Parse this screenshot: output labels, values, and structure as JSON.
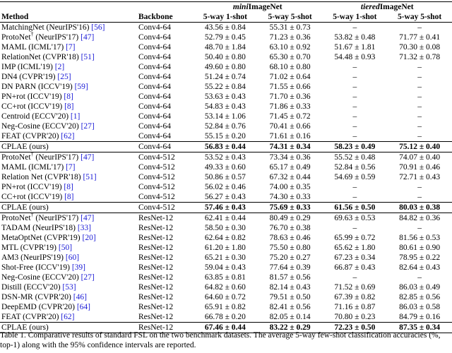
{
  "headers": {
    "method": "Method",
    "backbone": "Backbone",
    "group_mini_prefix": "mini",
    "group_mini_suffix": "ImageNet",
    "group_tiered_prefix": "tiered",
    "group_tiered_suffix": "ImageNet",
    "one_shot": "5-way 1-shot",
    "five_shot": "5-way 5-shot"
  },
  "groups": [
    {
      "rows": [
        {
          "name": "MatchingNet (NeurIPS'16) ",
          "cite": "[56]",
          "dagger": false,
          "backbone": "Conv4-64",
          "m1": "43.56 ± 0.84",
          "m5": "55.31 ± 0.73",
          "t1": "–",
          "t5": "–"
        },
        {
          "name": "ProtoNet",
          "tail": " (NeurIPS'17) ",
          "cite": "[47]",
          "dagger": true,
          "backbone": "Conv4-64",
          "m1": "52.79 ± 0.45",
          "m5": "71.23 ± 0.36",
          "t1": "53.82 ± 0.48",
          "t5": "71.77 ± 0.41"
        },
        {
          "name": "MAML (ICML'17) ",
          "cite": "[7]",
          "dagger": false,
          "backbone": "Conv4-64",
          "m1": "48.70 ± 1.84",
          "m5": "63.10 ± 0.92",
          "t1": "51.67 ± 1.81",
          "t5": "70.30 ± 0.08"
        },
        {
          "name": "RelationNet (CVPR'18) ",
          "cite": "[51]",
          "dagger": false,
          "backbone": "Conv4-64",
          "m1": "50.40 ± 0.80",
          "m5": "65.30 ± 0.70",
          "t1": "54.48 ± 0.93",
          "t5": "71.32 ± 0.78"
        },
        {
          "name": "IMP (ICML'19) ",
          "cite": "[2]",
          "dagger": false,
          "backbone": "Conv4-64",
          "m1": "49.60 ± 0.80",
          "m5": "68.10 ± 0.80",
          "t1": "–",
          "t5": "–"
        },
        {
          "name": "DN4 (CVPR'19) ",
          "cite": "[25]",
          "dagger": false,
          "backbone": "Conv4-64",
          "m1": "51.24 ± 0.74",
          "m5": "71.02 ± 0.64",
          "t1": "–",
          "t5": "–"
        },
        {
          "name": "DN PARN (ICCV'19) ",
          "cite": "[59]",
          "dagger": false,
          "backbone": "Conv4-64",
          "m1": "55.22 ± 0.84",
          "m5": "71.55 ± 0.66",
          "t1": "–",
          "t5": "–"
        },
        {
          "name": "PN+rot (ICCV'19) ",
          "cite": "[8]",
          "dagger": false,
          "backbone": "Conv4-64",
          "m1": "53.63 ± 0.43",
          "m5": "71.70 ± 0.36",
          "t1": "–",
          "t5": "–"
        },
        {
          "name": "CC+rot (ICCV'19) ",
          "cite": "[8]",
          "dagger": false,
          "backbone": "Conv4-64",
          "m1": "54.83 ± 0.43",
          "m5": "71.86 ± 0.33",
          "t1": "–",
          "t5": "–"
        },
        {
          "name": "Centroid (ECCV'20) ",
          "cite": "[1]",
          "dagger": false,
          "backbone": "Conv4-64",
          "m1": "53.14 ± 1.06",
          "m5": "71.45 ± 0.72",
          "t1": "–",
          "t5": "–"
        },
        {
          "name": "Neg-Cosine (ECCV'20) ",
          "cite": "[27]",
          "dagger": false,
          "backbone": "Conv4-64",
          "m1": "52.84 ± 0.76",
          "m5": "70.41 ± 0.66",
          "t1": "–",
          "t5": "–"
        },
        {
          "name": "FEAT (CVPR'20) ",
          "cite": "[62]",
          "dagger": false,
          "backbone": "Conv4-64",
          "m1": "55.15 ± 0.20",
          "m5": "71.61 ± 0.16",
          "t1": "–",
          "t5": "–"
        }
      ],
      "ours": {
        "name": "CPLAE (ours)",
        "backbone": "Conv4-64",
        "m1": "56.83 ± 0.44",
        "m5": "74.31 ± 0.34",
        "t1": "58.23 ± 0.49",
        "t5": "75.12 ± 0.40"
      }
    },
    {
      "rows": [
        {
          "name": "ProtoNet",
          "tail": " (NeurIPS'17) ",
          "cite": "[47]",
          "dagger": true,
          "backbone": "Conv4-512",
          "m1": "53.52 ± 0.43",
          "m5": "73.34 ± 0.36",
          "t1": "55.52 ± 0.48",
          "t5": "74.07 ± 0.40"
        },
        {
          "name": "MAML (ICML'17) ",
          "cite": "[7]",
          "dagger": false,
          "backbone": "Conv4-512",
          "m1": "49.33 ± 0.60",
          "m5": "65.17 ± 0.49",
          "t1": "52.84 ± 0.56",
          "t5": "70.91 ± 0.46"
        },
        {
          "name": "Relation Net (CVPR'18) ",
          "cite": "[51]",
          "dagger": false,
          "backbone": "Conv4-512",
          "m1": "50.86 ± 0.57",
          "m5": "67.32 ± 0.44",
          "t1": "54.69 ± 0.59",
          "t5": "72.71 ± 0.43"
        },
        {
          "name": "PN+rot (ICCV'19) ",
          "cite": "[8]",
          "dagger": false,
          "backbone": "Conv4-512",
          "m1": "56.02 ± 0.46",
          "m5": "74.00 ± 0.35",
          "t1": "–",
          "t5": "–"
        },
        {
          "name": "CC+rot (ICCV'19) ",
          "cite": "[8]",
          "dagger": false,
          "backbone": "Conv4-512",
          "m1": "56.27 ± 0.43",
          "m5": "74.30 ± 0.33",
          "t1": "–",
          "t5": "–"
        }
      ],
      "ours": {
        "name": "CPLAE (ours)",
        "backbone": "Conv4-512",
        "m1": "57.46 ± 0.43",
        "m5": "75.69 ± 0.33",
        "t1": "61.56 ± 0.50",
        "t5": "80.03 ± 0.38"
      }
    },
    {
      "rows": [
        {
          "name": "ProtoNet",
          "tail": " (NeurIPS'17) ",
          "cite": "[47]",
          "dagger": true,
          "backbone": "ResNet-12",
          "m1": "62.41 ± 0.44",
          "m5": "80.49 ± 0.29",
          "t1": "69.63 ± 0.53",
          "t5": "84.82 ± 0.36"
        },
        {
          "name": "TADAM (NeurIPS'18) ",
          "cite": "[33]",
          "dagger": false,
          "backbone": "ResNet-12",
          "m1": "58.50 ± 0.30",
          "m5": "76.70 ± 0.38",
          "t1": "–",
          "t5": "–"
        },
        {
          "name": "MetaOptNet (CVPR'19) ",
          "cite": "[20]",
          "dagger": false,
          "backbone": "ResNet-12",
          "m1": "62.64 ± 0.82",
          "m5": "78.63 ± 0.46",
          "t1": "65.99 ± 0.72",
          "t5": "81.56 ± 0.53"
        },
        {
          "name": "MTL (CVPR'19) ",
          "cite": "[50]",
          "dagger": false,
          "backbone": "ResNet-12",
          "m1": "61.20 ± 1.80",
          "m5": "75.50 ± 0.80",
          "t1": "65.62 ± 1.80",
          "t5": "80.61 ± 0.90"
        },
        {
          "name": "AM3 (NeurIPS'19) ",
          "cite": "[60]",
          "dagger": false,
          "backbone": "ResNet-12",
          "m1": "65.21 ± 0.30",
          "m5": "75.20 ± 0.27",
          "t1": "67.23 ± 0.34",
          "t5": "78.95 ± 0.22"
        },
        {
          "name": "Shot-Free (ICCV'19) ",
          "cite": "[39]",
          "dagger": false,
          "backbone": "ResNet-12",
          "m1": "59.04 ± 0.43",
          "m5": "77.64 ± 0.39",
          "t1": "66.87 ± 0.43",
          "t5": "82.64 ± 0.43"
        },
        {
          "name": "Neg-Cosine (ECCV'20) ",
          "cite": "[27]",
          "dagger": false,
          "backbone": "ResNet-12",
          "m1": "63.85 ± 0.81",
          "m5": "81.57 ± 0.56",
          "t1": "–",
          "t5": "–"
        },
        {
          "name": "Distill (ECCV'20) ",
          "cite": "[53]",
          "dagger": false,
          "backbone": "ResNet-12",
          "m1": "64.82 ± 0.60",
          "m5": "82.14 ± 0.43",
          "t1": "71.52 ± 0.69",
          "t5": "86.03 ± 0.49"
        },
        {
          "name": "DSN-MR (CVPR'20) ",
          "cite": "[46]",
          "dagger": false,
          "backbone": "ResNet-12",
          "m1": "64.60 ± 0.72",
          "m5": "79.51 ± 0.50",
          "t1": "67.39 ± 0.82",
          "t5": "82.85 ± 0.56"
        },
        {
          "name": "DeepEMD (CVPR'20) ",
          "cite": "[64]",
          "dagger": false,
          "backbone": "ResNet-12",
          "m1": "65.91 ± 0.82",
          "m5": "82.41 ± 0.56",
          "t1": "71.16 ± 0.87",
          "t5": "86.03 ± 0.58"
        },
        {
          "name": "FEAT (CVPR'20) ",
          "cite": "[62]",
          "dagger": false,
          "backbone": "ResNet-12",
          "m1": "66.78 ± 0.20",
          "m5": "82.05 ± 0.14",
          "t1": "70.80 ± 0.23",
          "t5": "84.79 ± 0.16"
        }
      ],
      "ours": {
        "name": "CPLAE (ours)",
        "backbone": "ResNet-12",
        "m1": "67.46 ± 0.44",
        "m5": "83.22 ± 0.29",
        "t1": "72.23 ± 0.50",
        "t5": "87.35 ± 0.34"
      }
    }
  ],
  "caption": "Table 1. Comparative results of standard FSL on the two benchmark datasets. The average 5-way few-shot classification accuracies (%, top-1) along with the 95% confidence intervals are reported."
}
